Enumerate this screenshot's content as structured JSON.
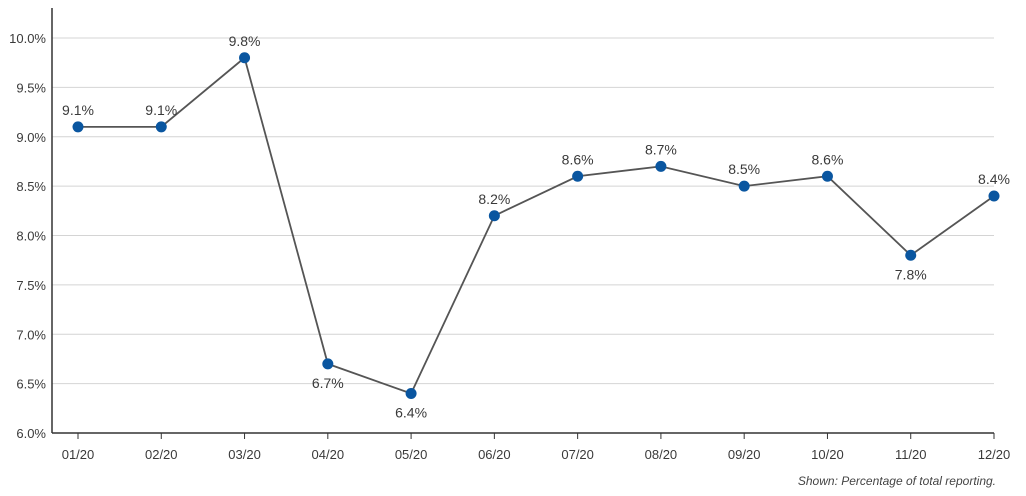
{
  "chart_data": {
    "type": "line",
    "categories": [
      "01/20",
      "02/20",
      "03/20",
      "04/20",
      "05/20",
      "06/20",
      "07/20",
      "08/20",
      "09/20",
      "10/20",
      "11/20",
      "12/20"
    ],
    "series": [
      {
        "values": [
          9.1,
          9.1,
          9.8,
          6.7,
          6.4,
          8.2,
          8.6,
          8.7,
          8.5,
          8.6,
          7.8,
          8.4
        ],
        "labels": [
          "9.1%",
          "9.1%",
          "9.8%",
          "6.7%",
          "6.4%",
          "8.2%",
          "8.6%",
          "8.7%",
          "8.5%",
          "8.6%",
          "7.8%",
          "8.4%"
        ]
      }
    ],
    "y_ticks": [
      "6.0%",
      "6.5%",
      "7.0%",
      "7.5%",
      "8.0%",
      "8.5%",
      "9.0%",
      "9.5%",
      "10.0%"
    ],
    "ylim": [
      6.0,
      10.0
    ],
    "grid": true,
    "colors": {
      "line": "#555555",
      "marker": "#0a56a0",
      "grid": "#d4d4d4",
      "axis": "#333333"
    },
    "note": "Shown: Percentage of total reporting."
  }
}
